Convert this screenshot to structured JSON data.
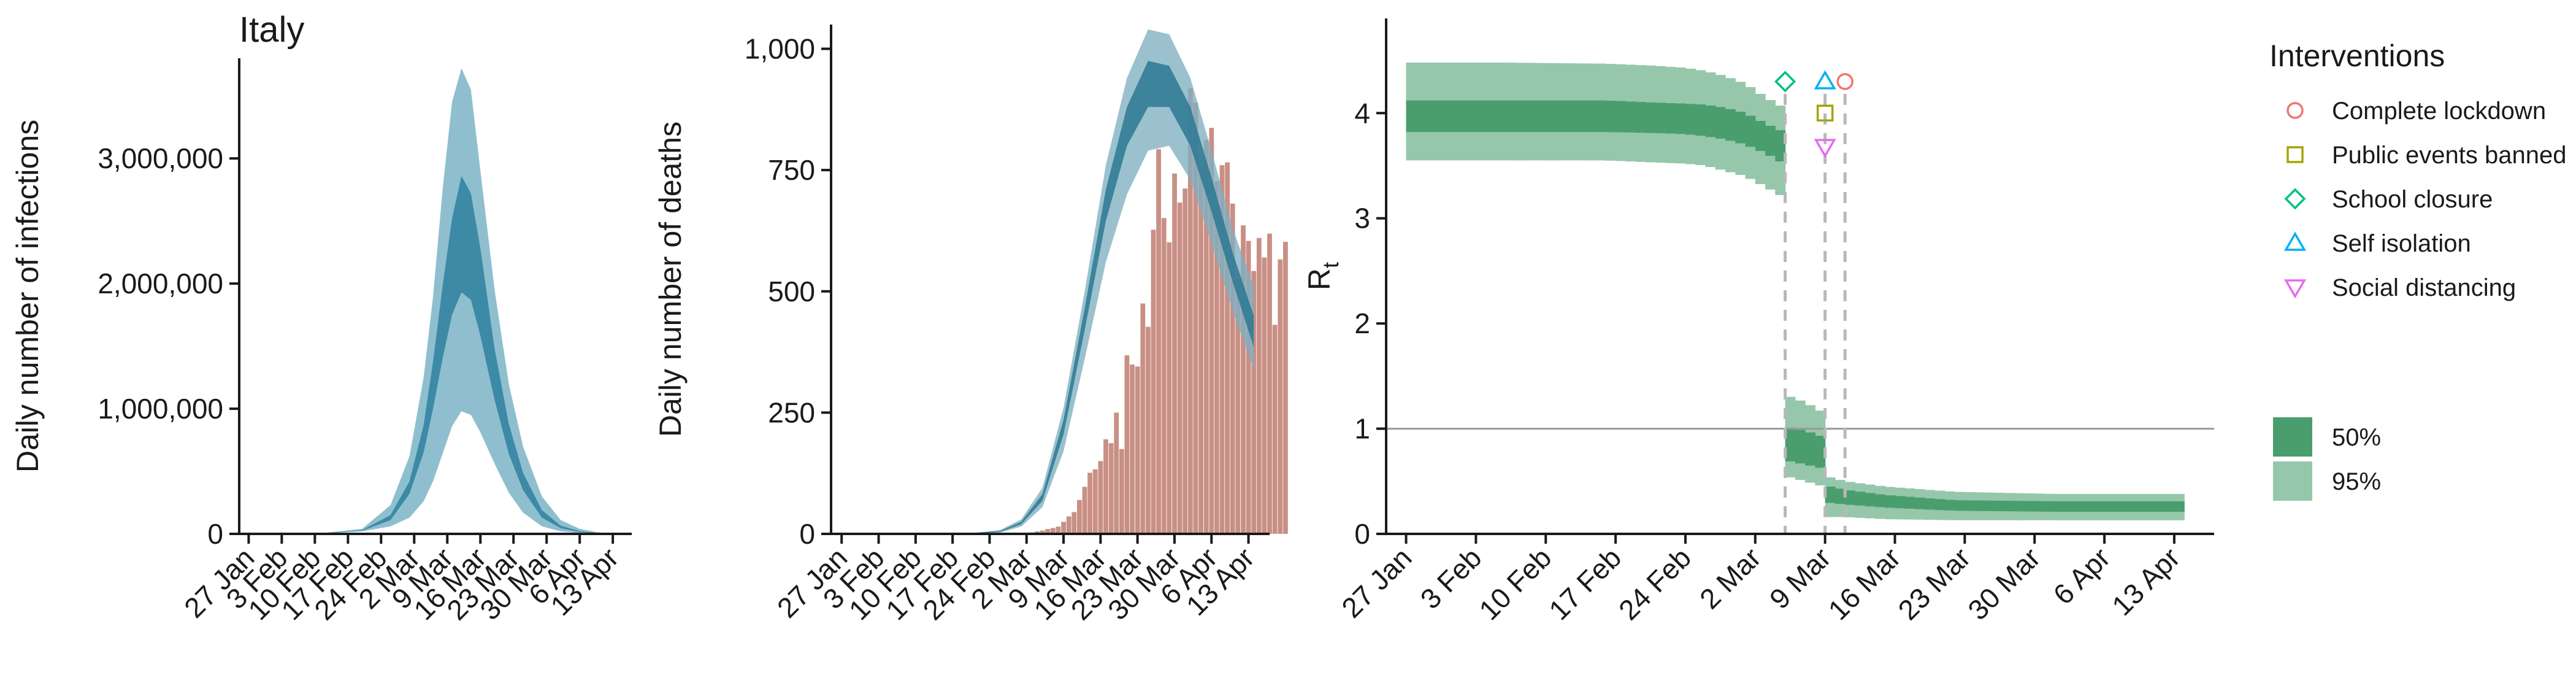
{
  "colors": {
    "infection_outer": "#8fbfcf",
    "infection_inner": "#3d8aa6",
    "death_outer": "#7fb0c2",
    "death_inner": "#2d7893",
    "bars": "#c98f85",
    "rt_outer": "#96c7aa",
    "rt_inner": "#4a9e6e",
    "ref_line": "#9a9a9a",
    "vline": "#b8b8b8",
    "lockdown": "#f0766d",
    "public_events": "#a3a500",
    "school": "#00bf7d",
    "self_isolation": "#00b0f6",
    "social_distancing": "#e76bf3"
  },
  "chart_data": [
    {
      "type": "area",
      "title": "Italy",
      "xlabel": "",
      "ylabel": "Daily number of infections",
      "x_ticks": [
        "27 Jan",
        "3 Feb",
        "10 Feb",
        "17 Feb",
        "24 Feb",
        "2 Mar",
        "9 Mar",
        "16 Mar",
        "23 Mar",
        "30 Mar",
        "6 Apr",
        "13 Apr"
      ],
      "y_ticks": [
        "0",
        "1,000,000",
        "2,000,000",
        "3,000,000"
      ],
      "ylim": [
        0,
        3800000
      ],
      "xlim_days": [
        -2,
        81
      ],
      "series": [
        {
          "name": "95%",
          "days": [
            0,
            14,
            24,
            30,
            34,
            37,
            39,
            41,
            43,
            45,
            47,
            49,
            52,
            55,
            58,
            62,
            66,
            70,
            74,
            78
          ],
          "lower": [
            0,
            0,
            20000,
            60000,
            130000,
            260000,
            420000,
            640000,
            860000,
            980000,
            950000,
            810000,
            560000,
            330000,
            170000,
            60000,
            20000,
            6000,
            2000,
            0
          ],
          "upper": [
            0,
            0,
            40000,
            230000,
            620000,
            1250000,
            1900000,
            2750000,
            3450000,
            3720000,
            3550000,
            2900000,
            1950000,
            1200000,
            700000,
            300000,
            110000,
            40000,
            12000,
            3000
          ]
        },
        {
          "name": "50%",
          "days": [
            0,
            14,
            24,
            30,
            34,
            37,
            39,
            41,
            43,
            45,
            47,
            49,
            52,
            55,
            58,
            62,
            66,
            70,
            74,
            78
          ],
          "lower": [
            0,
            0,
            25000,
            110000,
            320000,
            650000,
            1000000,
            1400000,
            1750000,
            1930000,
            1870000,
            1580000,
            1070000,
            640000,
            350000,
            130000,
            45000,
            15000,
            5000,
            0
          ],
          "upper": [
            0,
            0,
            30000,
            150000,
            420000,
            870000,
            1380000,
            1980000,
            2520000,
            2860000,
            2720000,
            2280000,
            1480000,
            880000,
            490000,
            190000,
            65000,
            22000,
            7000,
            1500
          ]
        }
      ]
    },
    {
      "type": "bar",
      "title": "",
      "xlabel": "",
      "ylabel": "Daily number of deaths",
      "x_ticks": [
        "27 Jan",
        "3 Feb",
        "10 Feb",
        "17 Feb",
        "24 Feb",
        "2 Mar",
        "9 Mar",
        "16 Mar",
        "23 Mar",
        "30 Mar",
        "6 Apr",
        "13 Apr"
      ],
      "y_ticks": [
        "0",
        "250",
        "500",
        "750",
        "1,000"
      ],
      "ylim": [
        0,
        1050
      ],
      "xlim_days": [
        -2,
        81
      ],
      "bars": {
        "start_day": 34,
        "values": [
          1,
          2,
          3,
          5,
          7,
          10,
          12,
          15,
          25,
          36,
          45,
          70,
          97,
          126,
          133,
          150,
          195,
          187,
          250,
          175,
          368,
          349,
          345,
          475,
          427,
          627,
          793,
          651,
          601,
          743,
          683,
          712,
          919,
          889,
          756,
          812,
          837,
          727,
          760,
          766,
          681,
          525,
          636,
          604,
          542,
          610,
          570,
          619,
          431,
          566,
          602
        ]
      },
      "series": [
        {
          "name": "95%",
          "days": [
            0,
            24,
            30,
            34,
            38,
            42,
            46,
            50,
            54,
            58,
            62,
            66,
            70,
            74,
            78
          ],
          "lower": [
            0,
            0,
            3,
            15,
            55,
            170,
            360,
            560,
            700,
            790,
            800,
            730,
            600,
            460,
            340
          ],
          "upper": [
            0,
            1,
            8,
            30,
            95,
            260,
            500,
            760,
            940,
            1040,
            1030,
            940,
            790,
            630,
            510
          ]
        },
        {
          "name": "50%",
          "days": [
            0,
            24,
            30,
            34,
            38,
            42,
            46,
            50,
            54,
            58,
            62,
            66,
            70,
            74,
            78
          ],
          "lower": [
            0,
            0,
            4,
            20,
            68,
            205,
            420,
            645,
            800,
            880,
            880,
            800,
            665,
            520,
            385
          ],
          "upper": [
            0,
            1,
            6,
            25,
            82,
            235,
            465,
            710,
            880,
            975,
            965,
            880,
            735,
            580,
            450
          ]
        }
      ]
    },
    {
      "type": "area",
      "title": "",
      "xlabel": "",
      "ylabel_main": "R",
      "ylabel_sub": "t",
      "x_ticks": [
        "27 Jan",
        "3 Feb",
        "10 Feb",
        "17 Feb",
        "24 Feb",
        "2 Mar",
        "9 Mar",
        "16 Mar",
        "23 Mar",
        "30 Mar",
        "6 Apr",
        "13 Apr"
      ],
      "y_ticks": [
        "0",
        "1",
        "2",
        "3",
        "4"
      ],
      "ylim": [
        0,
        4.9
      ],
      "xlim_days": [
        -2,
        81
      ],
      "reference_line_y": 1,
      "series": [
        {
          "name": "95%",
          "days": [
            0,
            10,
            20,
            25,
            28,
            30,
            32,
            34,
            36,
            37.9,
            38,
            40,
            41.9,
            42,
            44,
            48,
            55,
            65,
            78
          ],
          "lower": [
            3.55,
            3.55,
            3.55,
            3.53,
            3.52,
            3.5,
            3.45,
            3.4,
            3.3,
            3.2,
            0.55,
            0.5,
            0.45,
            0.16,
            0.16,
            0.14,
            0.13,
            0.13,
            0.13
          ],
          "upper": [
            4.48,
            4.48,
            4.47,
            4.45,
            4.43,
            4.4,
            4.35,
            4.28,
            4.15,
            4.05,
            1.32,
            1.25,
            1.15,
            0.55,
            0.5,
            0.45,
            0.4,
            0.38,
            0.38
          ]
        },
        {
          "name": "50%",
          "days": [
            0,
            10,
            20,
            25,
            28,
            30,
            32,
            34,
            36,
            37.9,
            38,
            40,
            41.9,
            42,
            44,
            48,
            55,
            65,
            78
          ],
          "lower": [
            3.82,
            3.82,
            3.82,
            3.81,
            3.8,
            3.78,
            3.75,
            3.7,
            3.62,
            3.52,
            0.7,
            0.66,
            0.62,
            0.3,
            0.28,
            0.25,
            0.22,
            0.21,
            0.21
          ],
          "upper": [
            4.12,
            4.12,
            4.12,
            4.1,
            4.09,
            4.08,
            4.05,
            4.0,
            3.9,
            3.82,
            1.02,
            0.98,
            0.92,
            0.46,
            0.42,
            0.37,
            0.32,
            0.31,
            0.31
          ]
        }
      ],
      "interventions": [
        {
          "label": "Complete lockdown",
          "day": 44,
          "y": 4.3,
          "marker": "circle",
          "color_key": "lockdown"
        },
        {
          "label": "Public events banned",
          "day": 42,
          "y": 4.0,
          "marker": "square",
          "color_key": "public_events"
        },
        {
          "label": "School closure",
          "day": 38,
          "y": 4.3,
          "marker": "diamond",
          "color_key": "school"
        },
        {
          "label": "Self isolation",
          "day": 42,
          "y": 4.3,
          "marker": "triangle-up",
          "color_key": "self_isolation"
        },
        {
          "label": "Social distancing",
          "day": 42,
          "y": 3.68,
          "marker": "triangle-down",
          "color_key": "social_distancing"
        }
      ],
      "intervention_vlines_days": [
        38,
        42,
        44
      ],
      "legend_title": "Interventions",
      "legend_position": "right",
      "interval_legend": [
        {
          "label": "50%",
          "color_key": "rt_inner"
        },
        {
          "label": "95%",
          "color_key": "rt_outer"
        }
      ]
    }
  ]
}
